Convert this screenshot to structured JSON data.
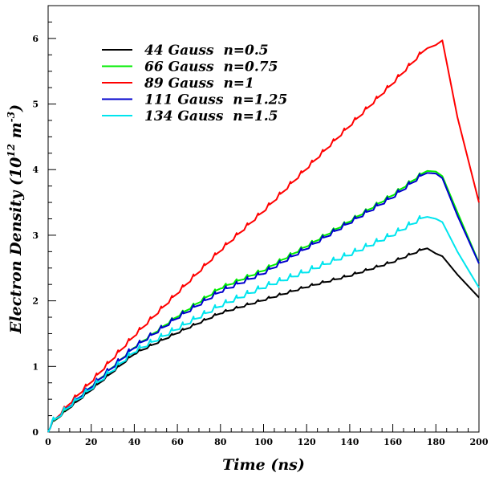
{
  "chart_data": {
    "type": "line",
    "title": "",
    "xlabel": "Time (ns)",
    "ylabel_main": "Electron Density (10",
    "ylabel_exp1": "12",
    "ylabel_unit": " m",
    "ylabel_exp2": "-3",
    "ylabel_close": ")",
    "xlim": [
      0,
      200
    ],
    "ylim": [
      0,
      6.5
    ],
    "x_ticks": [
      0,
      20,
      40,
      60,
      80,
      100,
      120,
      140,
      160,
      180,
      200
    ],
    "y_ticks": [
      0,
      1,
      2,
      3,
      4,
      5,
      6
    ],
    "x_minor_step": 5,
    "y_minor_step": 0.25,
    "legend_position": "top-left",
    "grid": false,
    "series": [
      {
        "name": "44 Gauss  n=0.5",
        "color": "#000000",
        "x": [
          0,
          2,
          10,
          20,
          40,
          60,
          80,
          100,
          120,
          140,
          160,
          176,
          180,
          183,
          190,
          200
        ],
        "y": [
          0,
          0.13,
          0.36,
          0.63,
          1.18,
          1.5,
          1.8,
          2.0,
          2.2,
          2.37,
          2.58,
          2.8,
          2.72,
          2.68,
          2.4,
          2.05
        ]
      },
      {
        "name": "66 Gauss  n=0.75",
        "color": "#00ee00",
        "x": [
          0,
          2,
          10,
          20,
          40,
          60,
          80,
          100,
          120,
          140,
          160,
          176,
          180,
          183,
          190,
          200
        ],
        "y": [
          0,
          0.13,
          0.38,
          0.68,
          1.28,
          1.75,
          2.18,
          2.45,
          2.82,
          3.2,
          3.6,
          3.98,
          3.97,
          3.9,
          3.35,
          2.58
        ]
      },
      {
        "name": "89 Gauss  n=1",
        "color": "#ff0000",
        "x": [
          0,
          2,
          10,
          20,
          40,
          60,
          80,
          100,
          120,
          140,
          160,
          176,
          180,
          183,
          190,
          200
        ],
        "y": [
          0,
          0.13,
          0.42,
          0.75,
          1.45,
          2.1,
          2.75,
          3.35,
          4.0,
          4.65,
          5.3,
          5.85,
          5.9,
          5.97,
          4.8,
          3.5
        ]
      },
      {
        "name": "111 Gauss  n=1.25",
        "color": "#0000cc",
        "x": [
          0,
          2,
          10,
          20,
          40,
          60,
          80,
          100,
          120,
          140,
          160,
          176,
          180,
          183,
          190,
          200
        ],
        "y": [
          0,
          0.13,
          0.38,
          0.67,
          1.27,
          1.72,
          2.12,
          2.4,
          2.78,
          3.17,
          3.56,
          3.95,
          3.94,
          3.87,
          3.3,
          2.57
        ]
      },
      {
        "name": "134 Gauss  n=1.5",
        "color": "#00e5ee",
        "x": [
          0,
          2,
          10,
          20,
          40,
          60,
          80,
          100,
          120,
          140,
          160,
          176,
          180,
          183,
          190,
          200
        ],
        "y": [
          0,
          0.13,
          0.37,
          0.64,
          1.2,
          1.55,
          1.9,
          2.18,
          2.42,
          2.68,
          2.98,
          3.28,
          3.25,
          3.2,
          2.75,
          2.2
        ]
      }
    ]
  }
}
